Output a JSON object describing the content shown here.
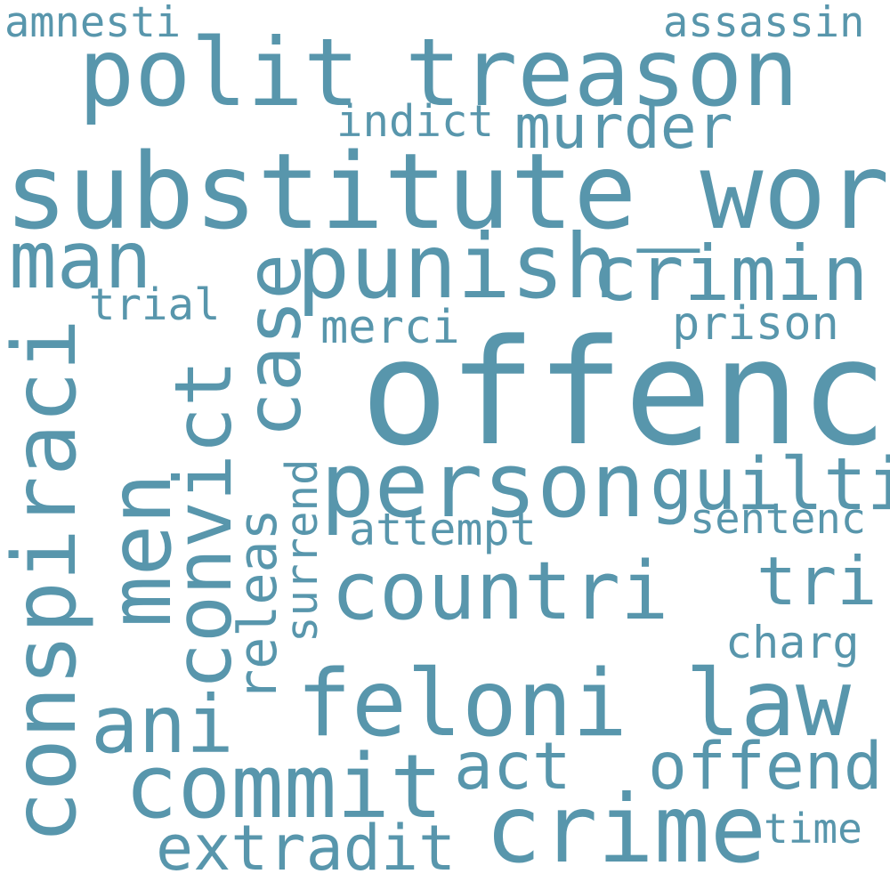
{
  "colors": {
    "background": "#ffffff",
    "word": "#5896ac"
  },
  "words": {
    "amnesti": "amnesti",
    "assassin": "assassin",
    "polit": "polit",
    "treason": "treason",
    "indict": "indict",
    "murder": "murder",
    "substitute_word": "substitute_word",
    "man": "man",
    "case": "case",
    "punish": "punish",
    "crimin": "crimin",
    "trial": "trial",
    "merci": "merci",
    "prison": "prison",
    "conspiraci": "conspiraci",
    "convict": "convict",
    "offenc": "offenc",
    "men": "men",
    "releas": "releas",
    "surrend": "surrend",
    "person": "person",
    "guilti": "guilti",
    "sentenc": "sentenc",
    "attempt": "attempt",
    "countri": "countri",
    "tri": "tri",
    "charg": "charg",
    "ani": "ani",
    "feloni": "feloni",
    "law": "law",
    "commit": "commit",
    "act": "act",
    "offend": "offend",
    "crime": "crime",
    "extradit": "extradit",
    "time": "time"
  }
}
